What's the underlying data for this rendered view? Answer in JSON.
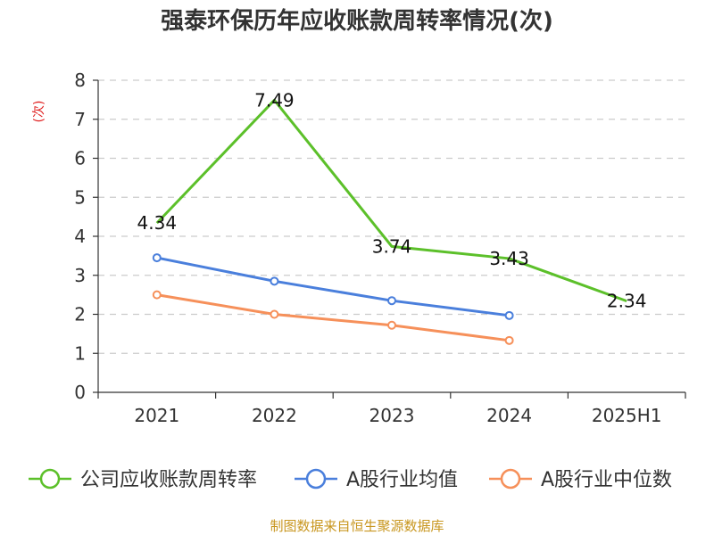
{
  "chart_data": {
    "type": "line",
    "title": "强泰环保历年应收账款周转率情况(次)",
    "ylabel": "(次)",
    "xlabel": "",
    "categories": [
      "2021",
      "2022",
      "2023",
      "2024",
      "2025H1"
    ],
    "ylim": [
      0,
      8
    ],
    "yticks": [
      0,
      1,
      2,
      3,
      4,
      5,
      6,
      7,
      8
    ],
    "grid": true,
    "legend_position": "bottom",
    "series": [
      {
        "name": "公司应收账款周转率",
        "color": "#5cc02a",
        "markers": false,
        "values": [
          4.34,
          7.49,
          3.74,
          3.43,
          2.34
        ],
        "labels": [
          "4.34",
          "7.49",
          "3.74",
          "3.43",
          "2.34"
        ]
      },
      {
        "name": "A股行业均值",
        "color": "#4a7fdc",
        "markers": true,
        "values": [
          3.45,
          2.85,
          2.35,
          1.97,
          null
        ]
      },
      {
        "name": "A股行业中位数",
        "color": "#f6905a",
        "markers": true,
        "values": [
          2.5,
          2.0,
          1.72,
          1.33,
          null
        ]
      }
    ],
    "source": "制图数据来自恒生聚源数据库"
  }
}
